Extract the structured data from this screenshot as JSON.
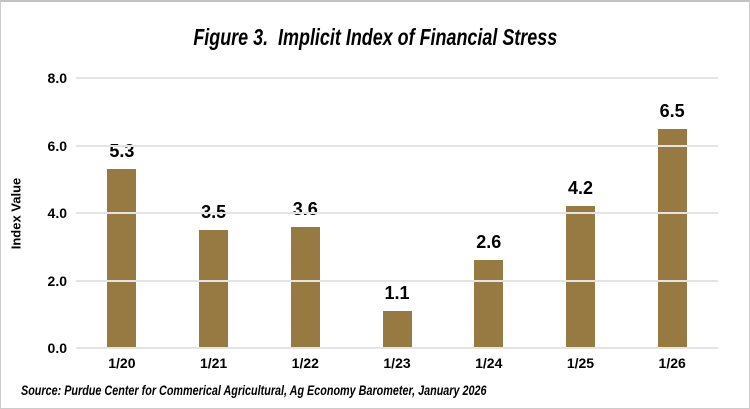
{
  "title": "Figure 3.  Implicit Index of Financial Stress",
  "source_note": "Source: Purdue Center for Commerical Agricultural, Ag Economy Barometer, January 2026",
  "colors": {
    "bar": "#977942",
    "gridline": "#e4e4e4",
    "text": "#000000",
    "background": "#ffffff",
    "frame_border": "#c8c8c8"
  },
  "chart_data": {
    "type": "bar",
    "title": "Figure 3.  Implicit Index of Financial Stress",
    "categories": [
      "1/20",
      "1/21",
      "1/22",
      "1/23",
      "1/24",
      "1/25",
      "1/26"
    ],
    "values": [
      5.3,
      3.5,
      3.6,
      1.1,
      2.6,
      4.2,
      6.5
    ],
    "data_labels": [
      "5.3",
      "3.5",
      "3.6",
      "1.1",
      "2.6",
      "4.2",
      "6.5"
    ],
    "xlabel": "",
    "ylabel": "Index Value",
    "ylim": [
      0,
      8
    ],
    "yticks": [
      0,
      2,
      4,
      6,
      8
    ],
    "ytick_labels": [
      "0.0",
      "2.0",
      "4.0",
      "6.0",
      "8.0"
    ],
    "grid": true,
    "legend": false,
    "bar_color": "#977942"
  }
}
